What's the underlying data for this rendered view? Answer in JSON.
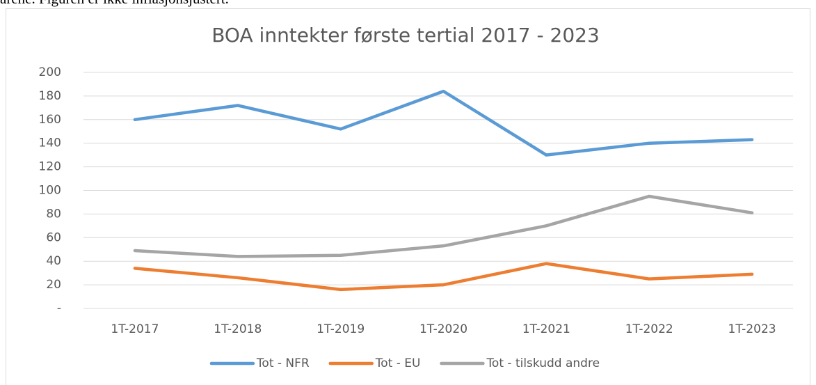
{
  "page_text": "arene. Figuren er ikke inflasjonsjustert.",
  "chart_data": {
    "type": "line",
    "title": "BOA inntekter første tertial 2017 - 2023",
    "categories": [
      "1T-2017",
      "1T-2018",
      "1T-2019",
      "1T-2020",
      "1T-2021",
      "1T-2022",
      "1T-2023"
    ],
    "series": [
      {
        "name": "Tot - NFR",
        "color": "#5b9bd5",
        "values": [
          160,
          172,
          152,
          184,
          130,
          140,
          143
        ]
      },
      {
        "name": "Tot - EU",
        "color": "#ed7d31",
        "values": [
          34,
          26,
          16,
          20,
          38,
          25,
          29
        ]
      },
      {
        "name": "Tot - tilskudd andre",
        "color": "#a5a5a5",
        "values": [
          49,
          44,
          45,
          53,
          70,
          95,
          81
        ]
      }
    ],
    "ylim": [
      0,
      200
    ],
    "yticks": [
      {
        "value": 0,
        "label": "-"
      },
      20,
      40,
      60,
      80,
      100,
      120,
      140,
      160,
      180,
      200
    ],
    "grid": true,
    "legend": "bottom"
  }
}
